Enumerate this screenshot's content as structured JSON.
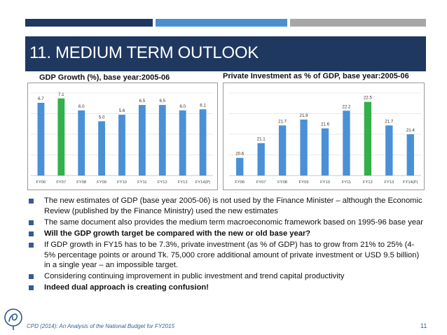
{
  "slide": {
    "title": "11. MEDIUM TERM OUTLOOK",
    "footer": "CPD (2014): An Analysis of the National Budget for FY2015",
    "page_number": "11"
  },
  "colors": {
    "navy": "#1f3860",
    "blue": "#4a8fd0",
    "gray": "#a6a6a6",
    "bar_blue": "#4a90d6",
    "bar_green": "#33b04a"
  },
  "bullets": [
    {
      "text": "The new estimates of GDP (base year 2005-06) is not used by the Finance Minister – although the Economic Review (published by the Finance Ministry) used the new estimates",
      "bold": false
    },
    {
      "text": "The same document also provides the medium term macroeconomic framework based on 1995-96 base year",
      "bold": false
    },
    {
      "text": "Will the GDP growth target be compared with the new or old base year?",
      "bold": true
    },
    {
      "text": "If GDP growth in FY15 has to be 7.3%, private investment (as % of GDP) has to grow from 21% to 25% (4-5% percentage points or around Tk. 75,000 crore additional amount of private investment or USD 9.5 billion) in a single year – an impossible target.",
      "bold": false
    },
    {
      "text": "Considering continuing improvement in public investment and trend capital productivity",
      "bold": false
    },
    {
      "text": "Indeed dual approach is creating confusion!",
      "bold": true
    }
  ],
  "chart_data": [
    {
      "type": "bar",
      "title": "GDP Growth (%), base year:2005-06",
      "categories": [
        "FY06",
        "FY07",
        "FY08",
        "FY09",
        "FY10",
        "FY11",
        "FY12",
        "FY13",
        "FY14(P)"
      ],
      "values": [
        6.7,
        7.1,
        6.0,
        5.0,
        5.6,
        6.5,
        6.5,
        6.0,
        6.1
      ],
      "labels": [
        "6.7",
        "7.1",
        "6.0",
        "5.0",
        "5.6",
        "6.5",
        "6.5",
        "6.0",
        "6.1"
      ],
      "highlight_index": 1,
      "ylim": [
        0,
        7.6
      ],
      "grid": true
    },
    {
      "type": "bar",
      "title": "Private Investment as % of GDP, base year:2005-06",
      "categories": [
        "FY06",
        "FY07",
        "FY08",
        "FY09",
        "FY10",
        "FY11",
        "FY12",
        "FY13",
        "FY14(P)"
      ],
      "values": [
        20.6,
        21.1,
        21.7,
        21.9,
        21.6,
        22.2,
        22.5,
        21.7,
        21.4
      ],
      "labels": [
        "20.6",
        "21.1",
        "21.7",
        "21.9",
        "21.6",
        "22.2",
        "22.5",
        "21.7",
        "21.4"
      ],
      "highlight_index": 6,
      "ylim": [
        20.0,
        22.8
      ],
      "grid": true
    }
  ]
}
